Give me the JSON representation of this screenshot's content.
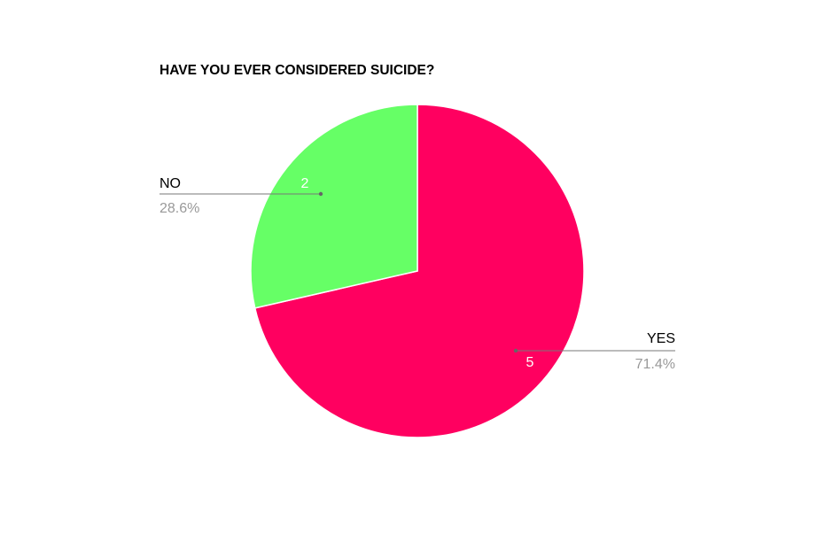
{
  "chart_data": {
    "type": "pie",
    "title": "HAVE YOU EVER CONSIDERED SUICIDE?",
    "categories": [
      "YES",
      "NO"
    ],
    "values": [
      5,
      2
    ],
    "percent_labels": [
      "71.4%",
      "28.6%"
    ],
    "value_labels": [
      "5",
      "2"
    ],
    "colors": [
      "#ff0060",
      "#66ff66"
    ],
    "legend": "none",
    "label_style": "callout lines with category and percent"
  }
}
